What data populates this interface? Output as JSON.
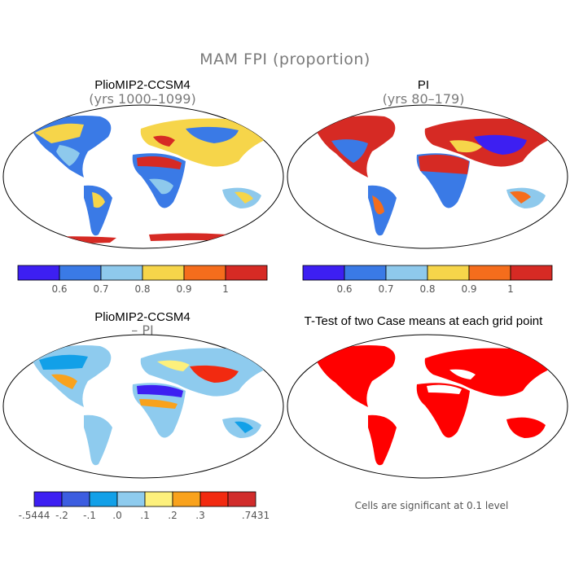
{
  "figure": {
    "title": "MAM FPI (proportion)",
    "colors": {
      "outline": "#000000",
      "subtitle_gray": "#7a7a7a",
      "significance_red": "#ff0000"
    }
  },
  "panels": [
    {
      "id": "top-left",
      "title": "PlioMIP2-CCSM4",
      "subtitle": "(yrs 1000–1099)",
      "colorbar": {
        "colors": [
          "#3d1ff2",
          "#3a7ae6",
          "#8ec9ec",
          "#f6d54a",
          "#f56d1c",
          "#d62a24"
        ],
        "tick_labels": [
          "0.6",
          "0.7",
          "0.8",
          "0.9",
          "1"
        ]
      }
    },
    {
      "id": "top-right",
      "title": "PI",
      "subtitle": "(yrs 80–179)",
      "colorbar": {
        "colors": [
          "#3d1ff2",
          "#3a7ae6",
          "#8ec9ec",
          "#f6d54a",
          "#f56d1c",
          "#d62a24"
        ],
        "tick_labels": [
          "0.6",
          "0.7",
          "0.8",
          "0.9",
          "1"
        ]
      }
    },
    {
      "id": "bottom-left",
      "title": "PlioMIP2-CCSM4",
      "subtitle": "– PI",
      "colorbar": {
        "colors": [
          "#3d1ff2",
          "#3c5de0",
          "#12a0e8",
          "#8ecbee",
          "#fdf07c",
          "#f9a21c",
          "#f22a10",
          "#d12c2b"
        ],
        "tick_labels": [
          "-.5444",
          "-.2",
          "-.1",
          ".0",
          ".1",
          ".2",
          ".3",
          ".7431"
        ]
      }
    },
    {
      "id": "bottom-right",
      "title": "T-Test of two Case means at each grid point",
      "footnote": "Cells are significant at 0.1 level"
    }
  ]
}
